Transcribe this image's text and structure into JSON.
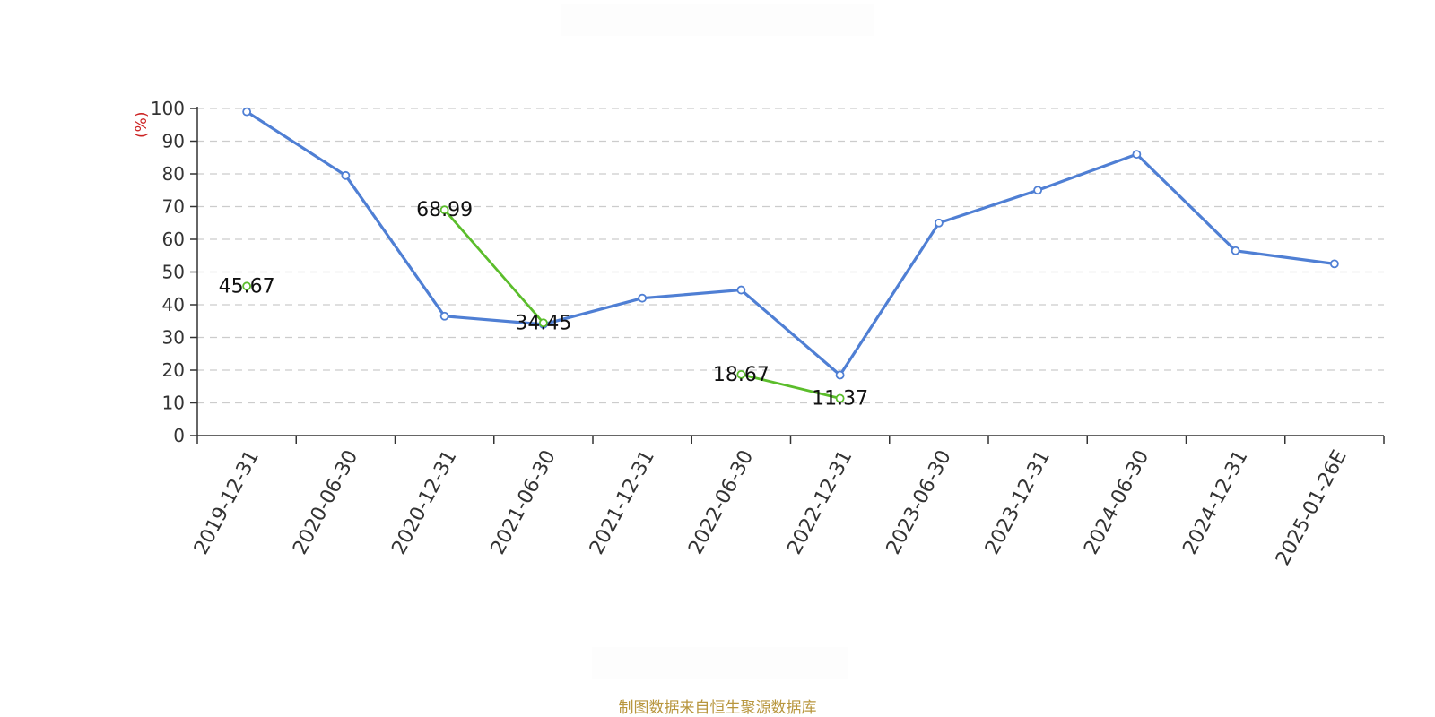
{
  "chart_data": {
    "type": "line",
    "categories": [
      "2019-12-31",
      "2020-06-30",
      "2020-12-31",
      "2021-06-30",
      "2021-12-31",
      "2022-06-30",
      "2022-12-31",
      "2023-06-30",
      "2023-12-31",
      "2024-06-30",
      "2024-12-31",
      "2025-01-26E"
    ],
    "series": [
      {
        "values": [
          99,
          79.5,
          36.5,
          34,
          42,
          44.5,
          18.5,
          65,
          75,
          86,
          56.5,
          52.5
        ],
        "color": "#4f7fd4"
      },
      {
        "values": [
          45.67,
          null,
          68.99,
          34.45,
          null,
          18.67,
          11.37,
          null,
          null,
          null,
          null,
          null
        ],
        "color": "#5bbd2b",
        "labeled": true
      }
    ],
    "ylabel": "(%)",
    "ylim": [
      0,
      100
    ],
    "yticks": [
      0,
      10,
      20,
      30,
      40,
      50,
      60,
      70,
      80,
      90,
      100
    ],
    "grid": true
  },
  "source_text": "制图数据来自恒生聚源数据库"
}
